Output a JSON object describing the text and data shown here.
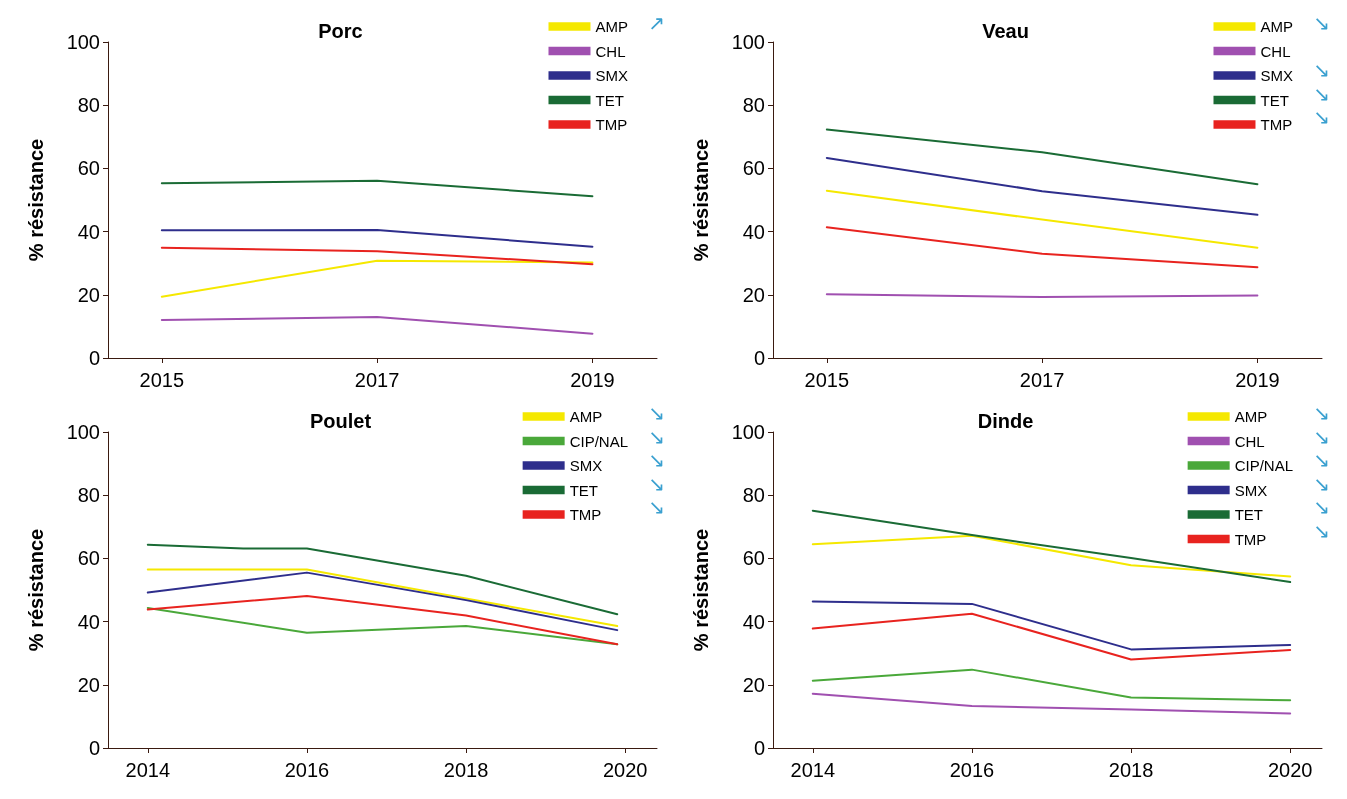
{
  "chart_data": [
    {
      "type": "line",
      "title": "Porc",
      "ylabel": "% résistance",
      "xlim": [
        2014.5,
        2019.6
      ],
      "xticks": [
        2015,
        2017,
        2019
      ],
      "ylim": [
        0,
        100
      ],
      "yticks": [
        0,
        20,
        40,
        60,
        80,
        100
      ],
      "grid": false,
      "legend": "top right",
      "marker": "none",
      "line_style": "solid",
      "annotations": [
        "↗",
        null,
        null,
        null,
        null
      ],
      "series": [
        {
          "name": "AMP",
          "color": "#f5e800",
          "x": [
            2015,
            2017,
            2019
          ],
          "values": [
            19.4,
            30.8,
            30.2
          ]
        },
        {
          "name": "CHL",
          "color": "#a050b0",
          "x": [
            2015,
            2017,
            2019
          ],
          "values": [
            12.0,
            13.0,
            7.7
          ]
        },
        {
          "name": "SMX",
          "color": "#2e2e8c",
          "x": [
            2015,
            2017,
            2019
          ],
          "values": [
            40.4,
            40.5,
            35.2
          ]
        },
        {
          "name": "TET",
          "color": "#1a6b35",
          "x": [
            2015,
            2017,
            2019
          ],
          "values": [
            55.3,
            56.1,
            51.2
          ]
        },
        {
          "name": "TMP",
          "color": "#e8231f",
          "x": [
            2015,
            2017,
            2019
          ],
          "values": [
            34.9,
            33.8,
            29.7
          ]
        }
      ]
    },
    {
      "type": "line",
      "title": "Veau",
      "ylabel": "% résistance",
      "xlim": [
        2014.5,
        2019.6
      ],
      "xticks": [
        2015,
        2017,
        2019
      ],
      "ylim": [
        0,
        100
      ],
      "yticks": [
        0,
        20,
        40,
        60,
        80,
        100
      ],
      "grid": false,
      "legend": "top right",
      "marker": "none",
      "line_style": "solid",
      "annotations": [
        "↘",
        null,
        "↘",
        "↘",
        "↘"
      ],
      "series": [
        {
          "name": "AMP",
          "color": "#f5e800",
          "x": [
            2015,
            2017,
            2019
          ],
          "values": [
            52.9,
            43.8,
            34.9
          ]
        },
        {
          "name": "CHL",
          "color": "#a050b0",
          "x": [
            2015,
            2017,
            2019
          ],
          "values": [
            20.2,
            19.3,
            19.8
          ]
        },
        {
          "name": "SMX",
          "color": "#2e2e8c",
          "x": [
            2015,
            2017,
            2019
          ],
          "values": [
            63.3,
            52.8,
            45.3
          ]
        },
        {
          "name": "TET",
          "color": "#1a6b35",
          "x": [
            2015,
            2017,
            2019
          ],
          "values": [
            72.3,
            65.1,
            55.0
          ]
        },
        {
          "name": "TMP",
          "color": "#e8231f",
          "x": [
            2015,
            2017,
            2019
          ],
          "values": [
            41.4,
            33.0,
            28.7
          ]
        }
      ]
    },
    {
      "type": "line",
      "title": "Poulet",
      "ylabel": "% résistance",
      "xlim": [
        2013.5,
        2020.4
      ],
      "xticks": [
        2014,
        2016,
        2018,
        2020
      ],
      "ylim": [
        0,
        100
      ],
      "yticks": [
        0,
        20,
        40,
        60,
        80,
        100
      ],
      "grid": false,
      "legend": "top right",
      "marker": "none",
      "line_style": "solid",
      "annotations": [
        "↘",
        "↘",
        "↘",
        "↘",
        "↘"
      ],
      "series": [
        {
          "name": "AMP",
          "color": "#f5e800",
          "x": [
            2014,
            2016,
            2018,
            2019.9
          ],
          "values": [
            56.5,
            56.5,
            47.3,
            38.6
          ]
        },
        {
          "name": "CIP/NAL",
          "color": "#4aa83a",
          "x": [
            2014,
            2016,
            2018,
            2019.9
          ],
          "values": [
            44.3,
            36.5,
            38.6,
            32.8
          ]
        },
        {
          "name": "SMX",
          "color": "#2e2e8c",
          "x": [
            2014,
            2016,
            2018,
            2019.9
          ],
          "values": [
            49.2,
            55.5,
            46.8,
            37.3
          ]
        },
        {
          "name": "TET",
          "color": "#1a6b35",
          "x": [
            2014,
            2015.2,
            2016,
            2018,
            2019.9
          ],
          "values": [
            64.3,
            63.1,
            63.1,
            54.5,
            42.3
          ]
        },
        {
          "name": "TMP",
          "color": "#e8231f",
          "x": [
            2014,
            2016,
            2018,
            2019.9
          ],
          "values": [
            43.8,
            48.1,
            41.9,
            32.8
          ]
        }
      ]
    },
    {
      "type": "line",
      "title": "Dinde",
      "ylabel": "% résistance",
      "xlim": [
        2013.5,
        2020.4
      ],
      "xticks": [
        2014,
        2016,
        2018,
        2020
      ],
      "ylim": [
        0,
        100
      ],
      "yticks": [
        0,
        20,
        40,
        60,
        80,
        100
      ],
      "grid": false,
      "legend": "top right",
      "marker": "none",
      "line_style": "solid",
      "annotations": [
        "↘",
        "↘",
        "↘",
        "↘",
        "↘",
        "↘"
      ],
      "series": [
        {
          "name": "AMP",
          "color": "#f5e800",
          "x": [
            2014,
            2016,
            2018,
            2020
          ],
          "values": [
            64.5,
            67.2,
            57.8,
            54.3
          ]
        },
        {
          "name": "CHL",
          "color": "#a050b0",
          "x": [
            2014,
            2016,
            2018,
            2020
          ],
          "values": [
            17.2,
            13.3,
            12.2,
            10.9
          ]
        },
        {
          "name": "CIP/NAL",
          "color": "#4aa83a",
          "x": [
            2014,
            2016,
            2018,
            2020
          ],
          "values": [
            21.3,
            24.8,
            16.0,
            15.1
          ]
        },
        {
          "name": "SMX",
          "color": "#2e2e8c",
          "x": [
            2014,
            2016,
            2018,
            2020
          ],
          "values": [
            46.4,
            45.6,
            31.2,
            32.6
          ]
        },
        {
          "name": "TET",
          "color": "#1a6b35",
          "x": [
            2014,
            2016,
            2018,
            2020
          ],
          "values": [
            75.1,
            67.4,
            60.1,
            52.5
          ]
        },
        {
          "name": "TMP",
          "color": "#e8231f",
          "x": [
            2014,
            2016,
            2018,
            2020
          ],
          "values": [
            37.8,
            42.5,
            28.0,
            31.0
          ]
        }
      ]
    }
  ]
}
